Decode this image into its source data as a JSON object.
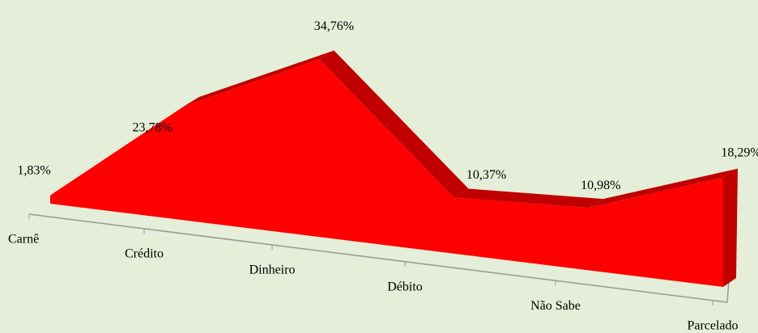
{
  "chart_data": {
    "type": "area3d",
    "categories": [
      "Carnê",
      "Crédito",
      "Dinheiro",
      "Débito",
      "Não Sabe",
      "Parcelado"
    ],
    "values": [
      1.83,
      23.78,
      34.76,
      10.37,
      10.98,
      18.29
    ],
    "value_labels": [
      "1,83%",
      "23,78%",
      "34,76%",
      "10,37%",
      "10,98%",
      "18,29%"
    ],
    "color": "#ff0000"
  }
}
